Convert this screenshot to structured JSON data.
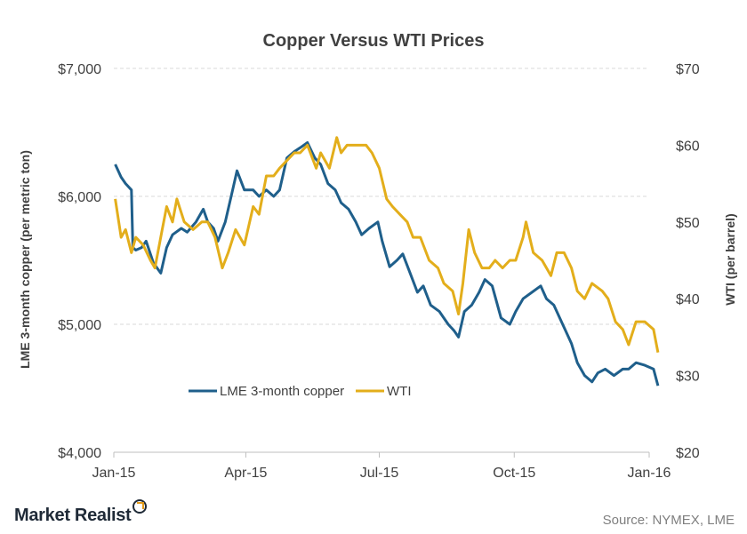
{
  "chart_data": {
    "type": "line",
    "title": "Copper  Versus WTI Prices",
    "x_ticks": [
      "Jan-15",
      "Apr-15",
      "Jul-15",
      "Oct-15",
      "Jan-16"
    ],
    "y_left": {
      "label": "LME 3-month copper (per metric ton)",
      "ticks": [
        "$4,000",
        "$5,000",
        "$6,000",
        "$7,000"
      ],
      "range": [
        4000,
        7000
      ]
    },
    "y_right": {
      "label": "WTI (per barrel)",
      "ticks": [
        "$20",
        "$30",
        "$40",
        "$50",
        "$60",
        "$70"
      ],
      "range": [
        20,
        70
      ]
    },
    "grid": true,
    "legend_position": "bottom-center (inside plot)",
    "series": [
      {
        "name": "LME 3-month copper",
        "axis": "left",
        "color": "#1f5f8b",
        "points": [
          [
            "2015-01-02",
            6250
          ],
          [
            "2015-01-06",
            6150
          ],
          [
            "2015-01-09",
            6100
          ],
          [
            "2015-01-13",
            6050
          ],
          [
            "2015-01-14",
            5600
          ],
          [
            "2015-01-16",
            5580
          ],
          [
            "2015-01-20",
            5600
          ],
          [
            "2015-01-23",
            5650
          ],
          [
            "2015-01-28",
            5480
          ],
          [
            "2015-02-02",
            5400
          ],
          [
            "2015-02-06",
            5600
          ],
          [
            "2015-02-10",
            5700
          ],
          [
            "2015-02-16",
            5750
          ],
          [
            "2015-02-20",
            5720
          ],
          [
            "2015-02-26",
            5800
          ],
          [
            "2015-03-03",
            5900
          ],
          [
            "2015-03-06",
            5800
          ],
          [
            "2015-03-10",
            5750
          ],
          [
            "2015-03-13",
            5650
          ],
          [
            "2015-03-18",
            5800
          ],
          [
            "2015-03-23",
            6050
          ],
          [
            "2015-03-26",
            6200
          ],
          [
            "2015-03-31",
            6050
          ],
          [
            "2015-04-06",
            6050
          ],
          [
            "2015-04-10",
            6000
          ],
          [
            "2015-04-15",
            6050
          ],
          [
            "2015-04-20",
            6000
          ],
          [
            "2015-04-24",
            6050
          ],
          [
            "2015-04-29",
            6300
          ],
          [
            "2015-05-04",
            6350
          ],
          [
            "2015-05-08",
            6380
          ],
          [
            "2015-05-13",
            6420
          ],
          [
            "2015-05-18",
            6300
          ],
          [
            "2015-05-22",
            6250
          ],
          [
            "2015-05-27",
            6100
          ],
          [
            "2015-06-01",
            6050
          ],
          [
            "2015-06-05",
            5950
          ],
          [
            "2015-06-10",
            5900
          ],
          [
            "2015-06-15",
            5800
          ],
          [
            "2015-06-19",
            5700
          ],
          [
            "2015-06-24",
            5750
          ],
          [
            "2015-06-30",
            5800
          ],
          [
            "2015-07-03",
            5650
          ],
          [
            "2015-07-08",
            5450
          ],
          [
            "2015-07-13",
            5500
          ],
          [
            "2015-07-17",
            5550
          ],
          [
            "2015-07-22",
            5400
          ],
          [
            "2015-07-27",
            5250
          ],
          [
            "2015-07-31",
            5300
          ],
          [
            "2015-08-05",
            5150
          ],
          [
            "2015-08-11",
            5100
          ],
          [
            "2015-08-17",
            5000
          ],
          [
            "2015-08-21",
            4950
          ],
          [
            "2015-08-24",
            4900
          ],
          [
            "2015-08-28",
            5100
          ],
          [
            "2015-09-02",
            5150
          ],
          [
            "2015-09-07",
            5250
          ],
          [
            "2015-09-11",
            5350
          ],
          [
            "2015-09-16",
            5300
          ],
          [
            "2015-09-22",
            5050
          ],
          [
            "2015-09-28",
            5000
          ],
          [
            "2015-10-02",
            5100
          ],
          [
            "2015-10-07",
            5200
          ],
          [
            "2015-10-13",
            5250
          ],
          [
            "2015-10-19",
            5300
          ],
          [
            "2015-10-23",
            5200
          ],
          [
            "2015-10-28",
            5150
          ],
          [
            "2015-11-03",
            5000
          ],
          [
            "2015-11-09",
            4850
          ],
          [
            "2015-11-13",
            4700
          ],
          [
            "2015-11-18",
            4600
          ],
          [
            "2015-11-23",
            4550
          ],
          [
            "2015-11-27",
            4620
          ],
          [
            "2015-12-02",
            4650
          ],
          [
            "2015-12-08",
            4600
          ],
          [
            "2015-12-14",
            4650
          ],
          [
            "2015-12-18",
            4650
          ],
          [
            "2015-12-23",
            4700
          ],
          [
            "2015-12-29",
            4680
          ],
          [
            "2016-01-04",
            4650
          ],
          [
            "2016-01-07",
            4520
          ]
        ]
      },
      {
        "name": "WTI",
        "axis": "right",
        "color": "#e3ae1b",
        "points": [
          [
            "2015-01-02",
            53
          ],
          [
            "2015-01-06",
            48
          ],
          [
            "2015-01-09",
            49
          ],
          [
            "2015-01-13",
            46
          ],
          [
            "2015-01-16",
            48
          ],
          [
            "2015-01-21",
            47
          ],
          [
            "2015-01-26",
            45
          ],
          [
            "2015-01-29",
            44
          ],
          [
            "2015-02-03",
            49
          ],
          [
            "2015-02-06",
            52
          ],
          [
            "2015-02-10",
            50
          ],
          [
            "2015-02-13",
            53
          ],
          [
            "2015-02-18",
            50
          ],
          [
            "2015-02-24",
            49
          ],
          [
            "2015-03-02",
            50
          ],
          [
            "2015-03-06",
            50
          ],
          [
            "2015-03-11",
            48
          ],
          [
            "2015-03-16",
            44
          ],
          [
            "2015-03-20",
            46
          ],
          [
            "2015-03-25",
            49
          ],
          [
            "2015-03-31",
            47
          ],
          [
            "2015-04-06",
            52
          ],
          [
            "2015-04-10",
            51
          ],
          [
            "2015-04-15",
            56
          ],
          [
            "2015-04-20",
            56
          ],
          [
            "2015-04-24",
            57
          ],
          [
            "2015-04-29",
            58
          ],
          [
            "2015-05-04",
            59
          ],
          [
            "2015-05-08",
            59
          ],
          [
            "2015-05-13",
            60
          ],
          [
            "2015-05-19",
            57
          ],
          [
            "2015-05-22",
            59
          ],
          [
            "2015-05-28",
            57
          ],
          [
            "2015-06-02",
            61
          ],
          [
            "2015-06-05",
            59
          ],
          [
            "2015-06-09",
            60
          ],
          [
            "2015-06-12",
            60
          ],
          [
            "2015-06-17",
            60
          ],
          [
            "2015-06-22",
            60
          ],
          [
            "2015-06-26",
            59
          ],
          [
            "2015-07-01",
            57
          ],
          [
            "2015-07-06",
            53
          ],
          [
            "2015-07-10",
            52
          ],
          [
            "2015-07-15",
            51
          ],
          [
            "2015-07-20",
            50
          ],
          [
            "2015-07-24",
            48
          ],
          [
            "2015-07-29",
            48
          ],
          [
            "2015-08-04",
            45
          ],
          [
            "2015-08-10",
            44
          ],
          [
            "2015-08-14",
            42
          ],
          [
            "2015-08-20",
            41
          ],
          [
            "2015-08-24",
            38
          ],
          [
            "2015-08-27",
            42
          ],
          [
            "2015-08-31",
            49
          ],
          [
            "2015-09-04",
            46
          ],
          [
            "2015-09-09",
            44
          ],
          [
            "2015-09-14",
            44
          ],
          [
            "2015-09-18",
            45
          ],
          [
            "2015-09-23",
            44
          ],
          [
            "2015-09-28",
            45
          ],
          [
            "2015-10-02",
            45
          ],
          [
            "2015-10-07",
            48
          ],
          [
            "2015-10-09",
            50
          ],
          [
            "2015-10-14",
            46
          ],
          [
            "2015-10-20",
            45
          ],
          [
            "2015-10-26",
            43
          ],
          [
            "2015-10-30",
            46
          ],
          [
            "2015-11-04",
            46
          ],
          [
            "2015-11-09",
            44
          ],
          [
            "2015-11-13",
            41
          ],
          [
            "2015-11-18",
            40
          ],
          [
            "2015-11-23",
            42
          ],
          [
            "2015-11-30",
            41
          ],
          [
            "2015-12-04",
            40
          ],
          [
            "2015-12-09",
            37
          ],
          [
            "2015-12-14",
            36
          ],
          [
            "2015-12-18",
            34
          ],
          [
            "2015-12-23",
            37
          ],
          [
            "2015-12-29",
            37
          ],
          [
            "2016-01-04",
            36
          ],
          [
            "2016-01-06",
            34
          ],
          [
            "2016-01-07",
            33
          ]
        ]
      }
    ]
  },
  "footer": {
    "brand": "Market Realist",
    "source": "Source: NYMEX, LME"
  }
}
